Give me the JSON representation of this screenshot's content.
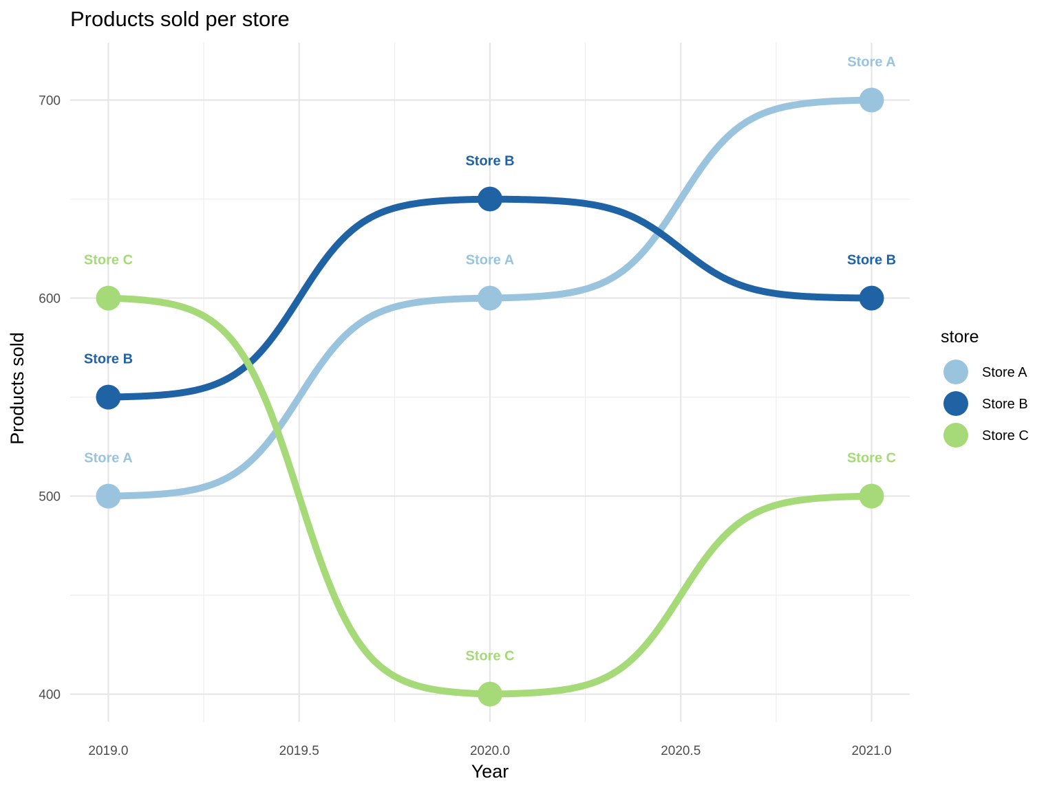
{
  "chart_data": {
    "type": "line",
    "title": "Products sold per store",
    "xlabel": "Year",
    "ylabel": "Products sold",
    "x": [
      2019,
      2020,
      2021
    ],
    "xlim": [
      2018.9,
      2021.1
    ],
    "ylim": [
      386,
      729
    ],
    "x_ticks": [
      2019.0,
      2019.5,
      2020.0,
      2020.5,
      2021.0
    ],
    "x_tick_labels": [
      "2019.0",
      "2019.5",
      "2020.0",
      "2020.5",
      "2021.0"
    ],
    "x_minor_ticks": [
      2019.25,
      2019.75,
      2020.25,
      2020.75
    ],
    "y_ticks": [
      400,
      500,
      600,
      700
    ],
    "y_tick_labels": [
      "400",
      "500",
      "600",
      "700"
    ],
    "y_minor_ticks": [
      450,
      550,
      650
    ],
    "grid": true,
    "curve": "smooth sigmoid transitions between points",
    "legend": {
      "title": "store",
      "position": "right"
    },
    "series": [
      {
        "name": "Store A",
        "color": "#9ac4de",
        "values": [
          500,
          600,
          700
        ]
      },
      {
        "name": "Store B",
        "color": "#1f63a5",
        "values": [
          550,
          650,
          600
        ]
      },
      {
        "name": "Store C",
        "color": "#a6da78",
        "values": [
          600,
          400,
          500
        ]
      }
    ]
  }
}
